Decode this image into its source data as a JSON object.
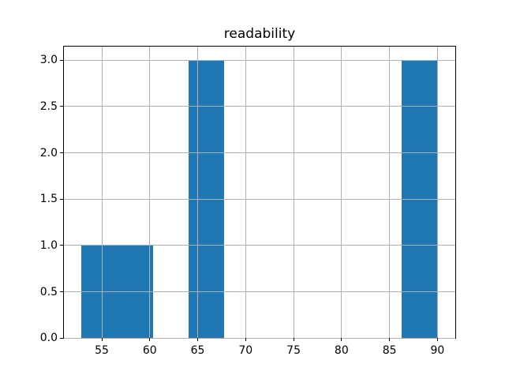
{
  "chart_data": {
    "type": "bar",
    "subtype": "histogram",
    "title": "readability",
    "xlabel": "",
    "ylabel": "",
    "bin_edges": [
      52.9,
      56.61,
      60.32,
      64.03,
      67.74,
      71.45,
      75.16,
      78.87,
      82.58,
      86.29,
      90.0
    ],
    "counts": [
      1,
      1,
      0,
      3,
      0,
      0,
      0,
      0,
      0,
      3
    ],
    "xlim": [
      51.05,
      91.86
    ],
    "ylim": [
      0,
      3.15
    ],
    "xticks": {
      "values": [
        55,
        60,
        65,
        70,
        75,
        80,
        85,
        90
      ],
      "labels": [
        "55",
        "60",
        "65",
        "70",
        "75",
        "80",
        "85",
        "90"
      ]
    },
    "yticks": {
      "values": [
        0,
        0.5,
        1,
        1.5,
        2,
        2.5,
        3
      ],
      "labels": [
        "0.0",
        "0.5",
        "1.0",
        "1.5",
        "2.0",
        "2.5",
        "3.0"
      ]
    },
    "grid": true,
    "legend_position": "none",
    "colors": {
      "bar": "#1f77b4",
      "grid": "#b0b0b0",
      "spine": "#000000",
      "text": "#000000",
      "background": "#ffffff"
    }
  }
}
